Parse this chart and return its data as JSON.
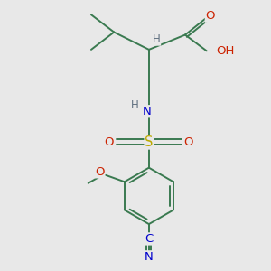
{
  "bg_color": "#e8e8e8",
  "bond_color": "#3a7a50",
  "bond_width": 1.4,
  "atom_colors": {
    "H": "#607080",
    "O": "#cc2200",
    "N": "#0000cc",
    "S": "#bbaa00",
    "C_blue": "#0000cc"
  },
  "font_size": 8.5
}
